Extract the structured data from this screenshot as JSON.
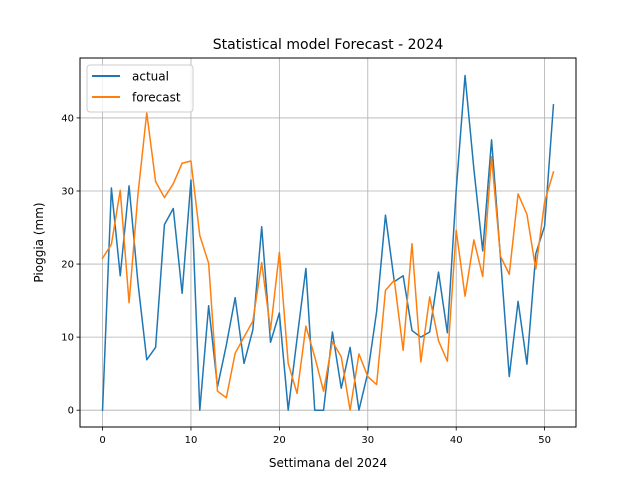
{
  "chart_data": {
    "type": "line",
    "title": "Statistical model Forecast - 2024",
    "xlabel": "Settimana del 2024",
    "ylabel": "Pioggia (mm)",
    "xlim": [
      -2.55,
      53.55
    ],
    "ylim": [
      -2.3,
      48.2
    ],
    "xticks": [
      0,
      10,
      20,
      30,
      40,
      50
    ],
    "yticks": [
      0,
      10,
      20,
      30,
      40
    ],
    "grid": true,
    "legend_position": "top-left",
    "x": [
      0,
      1,
      2,
      3,
      4,
      5,
      6,
      7,
      8,
      9,
      10,
      11,
      12,
      13,
      14,
      15,
      16,
      17,
      18,
      19,
      20,
      21,
      22,
      23,
      24,
      25,
      26,
      27,
      28,
      29,
      30,
      31,
      32,
      33,
      34,
      35,
      36,
      37,
      38,
      39,
      40,
      41,
      42,
      43,
      44,
      45,
      46,
      47,
      48,
      49,
      50,
      51
    ],
    "series": [
      {
        "name": "actual",
        "color": "#1f77b4",
        "values": [
          0,
          30.4,
          18.4,
          30.7,
          17.5,
          6.9,
          8.6,
          25.4,
          27.6,
          16,
          31.5,
          0,
          14.3,
          3.2,
          8.9,
          15.4,
          6.4,
          11,
          25.1,
          9.3,
          13.3,
          0,
          9.8,
          19.4,
          0,
          0,
          10.7,
          3,
          8.6,
          0,
          5.1,
          13.5,
          26.7,
          17.6,
          18.4,
          10.9,
          10,
          10.7,
          18.9,
          10.6,
          30.1,
          45.8,
          33,
          21.8,
          37,
          21,
          4.6,
          14.9,
          6.3,
          21.4,
          25.2,
          41.8
        ]
      },
      {
        "name": "forecast",
        "color": "#ff7f0e",
        "values": [
          20.8,
          22.7,
          30.1,
          14.7,
          29.5,
          40.7,
          31.3,
          29.1,
          31,
          33.8,
          34.1,
          23.9,
          20.1,
          2.6,
          1.7,
          7.8,
          10,
          12.2,
          20.2,
          11,
          21.6,
          6.4,
          2.3,
          11.5,
          7.3,
          2.6,
          9.4,
          7.3,
          0,
          7.7,
          4.6,
          3.5,
          16.4,
          17.8,
          8.2,
          22.8,
          6.6,
          15.5,
          9.5,
          6.7,
          24.6,
          15.6,
          23.3,
          18.3,
          34.7,
          21.1,
          18.6,
          29.6,
          26.8,
          19.3,
          28.5,
          32.6
        ]
      }
    ]
  }
}
